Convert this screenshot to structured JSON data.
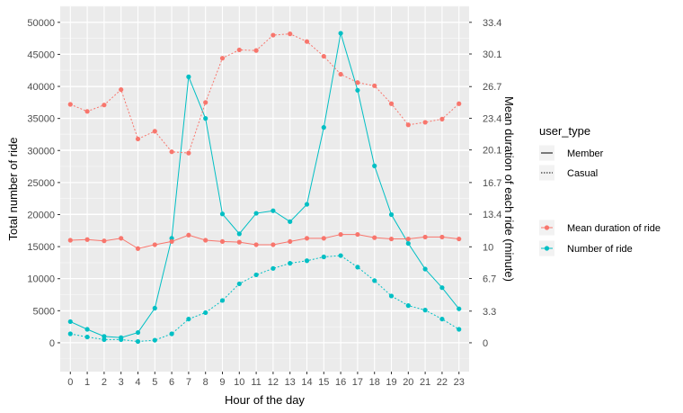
{
  "chart_data": {
    "type": "line",
    "title": "",
    "xlabel": "Hour of the day",
    "ylabel": "Total number of ride",
    "y2label": "Mean duration of each ride (minute)",
    "x": [
      0,
      1,
      2,
      3,
      4,
      5,
      6,
      7,
      8,
      9,
      10,
      11,
      12,
      13,
      14,
      15,
      16,
      17,
      18,
      19,
      20,
      21,
      22,
      23
    ],
    "ylim": [
      -4500,
      52500
    ],
    "y_ticks": [
      0,
      5000,
      10000,
      15000,
      20000,
      25000,
      30000,
      35000,
      40000,
      45000,
      50000
    ],
    "y2_tick_labels": [
      "0",
      "3.3",
      "6.7",
      "10",
      "13.4",
      "16.7",
      "20.1",
      "23.4",
      "26.7",
      "30.1",
      "33.4"
    ],
    "y2_scale_rides_per_minute": 1497,
    "series": [
      {
        "name": "Number of ride",
        "user_type": "Member",
        "color": "#00BFC4",
        "linetype": "solid",
        "values": [
          3300,
          2100,
          1000,
          800,
          1600,
          5400,
          16300,
          41500,
          35000,
          20100,
          17000,
          20200,
          20600,
          18900,
          21600,
          33600,
          48300,
          39400,
          27600,
          20000,
          15500,
          11500,
          8600,
          5300
        ]
      },
      {
        "name": "Number of ride",
        "user_type": "Casual",
        "color": "#00BFC4",
        "linetype": "dashed",
        "values": [
          1400,
          900,
          500,
          500,
          200,
          400,
          1400,
          3700,
          4700,
          6600,
          9200,
          10600,
          11600,
          12400,
          12800,
          13400,
          13600,
          11800,
          9700,
          7300,
          5800,
          5100,
          3700,
          2100
        ]
      },
      {
        "name": "Mean duration of ride",
        "user_type": "Member",
        "color": "#F8766D",
        "linetype": "solid",
        "values": [
          16000,
          16100,
          15900,
          16300,
          14700,
          15300,
          15800,
          16800,
          16000,
          15800,
          15700,
          15300,
          15300,
          15800,
          16300,
          16300,
          16900,
          16900,
          16400,
          16200,
          16200,
          16500,
          16500,
          16200
        ]
      },
      {
        "name": "Mean duration of ride",
        "user_type": "Casual",
        "color": "#F8766D",
        "linetype": "dashed",
        "values": [
          37200,
          36100,
          37100,
          39500,
          31800,
          33000,
          29800,
          29600,
          37500,
          44400,
          45700,
          45600,
          48000,
          48200,
          47000,
          44700,
          41900,
          40600,
          40100,
          37300,
          34000,
          34400,
          34900,
          37300
        ]
      }
    ],
    "legend": {
      "user_type_title": "user_type",
      "user_type_items": [
        "Member",
        "Casual"
      ],
      "series_items": [
        {
          "label": "Mean duration of ride",
          "color": "#F8766D"
        },
        {
          "label": "Number of ride",
          "color": "#00BFC4"
        }
      ]
    }
  }
}
